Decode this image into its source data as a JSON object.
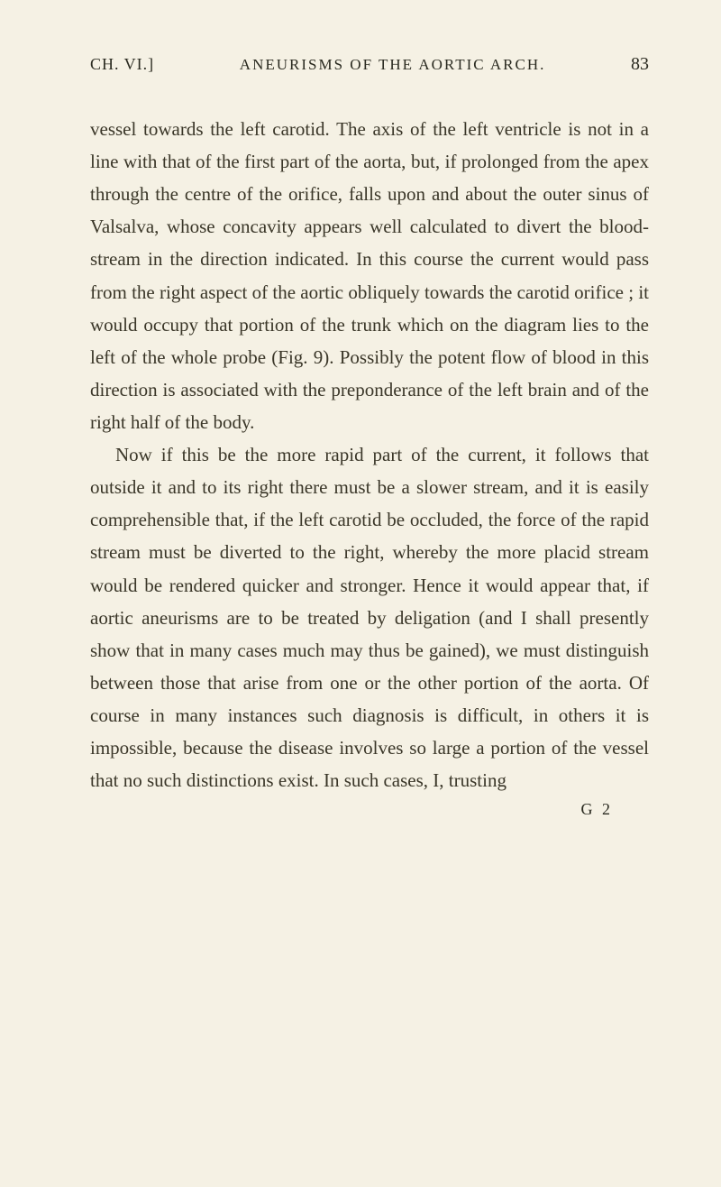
{
  "header": {
    "chapter": "CH. VI.]",
    "title": "ANEURISMS OF THE AORTIC ARCH.",
    "page": "83"
  },
  "body": {
    "para1": "vessel towards the left carotid. The axis of the left ventricle is not in a line with that of the first part of the aorta, but, if prolonged from the apex through the centre of the orifice, falls upon and about the outer sinus of Valsalva, whose concavity appears well calculated to divert the blood-stream in the direction indicated. In this course the current would pass from the right aspect of the aortic obliquely towards the carotid orifice ; it would occupy that portion of the trunk which on the diagram lies to the left of the whole probe (Fig. 9). Possibly the potent flow of blood in this direction is associated with the preponderance of the left brain and of the right half of the body.",
    "para2": "Now if this be the more rapid part of the current, it follows that outside it and to its right there must be a slower stream, and it is easily comprehensible that, if the left carotid be occluded, the force of the rapid stream must be diverted to the right, whereby the more placid stream would be rendered quicker and stronger. Hence it would appear that, if aortic aneurisms are to be treated by deligation (and I shall presently show that in many cases much may thus be gained), we must distinguish between those that arise from one or the other portion of the aorta. Of course in many instances such diagnosis is difficult, in others it is impossible, because the disease involves so large a portion of the vessel that no such distinctions exist. In such cases, I, trusting"
  },
  "footer": {
    "sig": "G 2"
  },
  "colors": {
    "background": "#f5f1e4",
    "text": "#3a3628"
  },
  "typography": {
    "body_fontsize": 21,
    "line_height": 1.72,
    "header_fontsize": 18
  }
}
